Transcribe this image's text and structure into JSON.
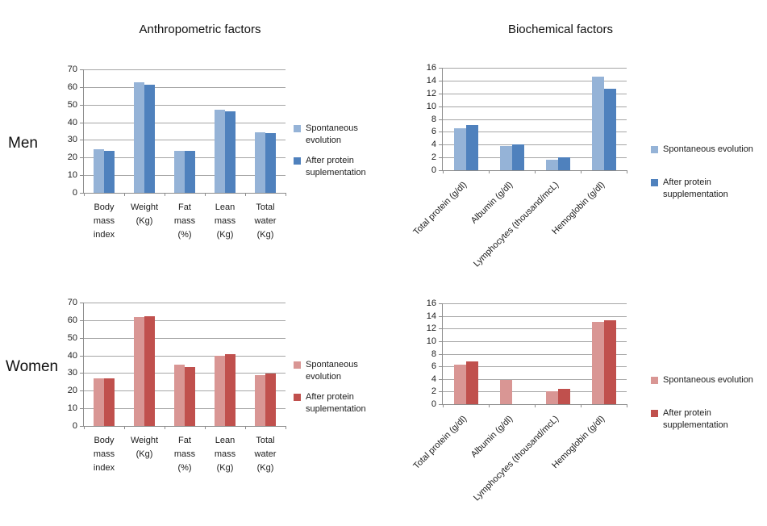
{
  "figure": {
    "column_titles": [
      "Anthropometric factors",
      "Biochemical factors"
    ],
    "row_labels": [
      "Men",
      "Women"
    ]
  },
  "colors": {
    "men_light_blue": "#95B3D7",
    "men_dark_blue": "#4F81BD",
    "women_light_pink": "#D99694",
    "women_dark_red": "#C0504D",
    "gridline": "#A6A6A6",
    "axis": "#8C8C8C",
    "text": "#1C1C1C",
    "background": "#FFFFFF"
  },
  "chart_data": [
    {
      "id": "men-anthropometric",
      "type": "bar",
      "row": "Men",
      "group_title": "Anthropometric factors",
      "categories": [
        "Body mass index",
        "Weight (Kg)",
        "Fat mass (%)",
        "Lean mass (Kg)",
        "Total water (Kg)"
      ],
      "series": [
        {
          "name": "Spontaneous evolution",
          "color": "#95B3D7",
          "values": [
            24.8,
            62.5,
            24,
            47,
            34.4
          ]
        },
        {
          "name": "After protein suplementation",
          "color": "#4F81BD",
          "values": [
            24,
            61.3,
            24,
            46.2,
            33.9
          ]
        }
      ],
      "xlabel": "",
      "ylabel": "",
      "ylim": [
        0,
        70
      ],
      "ytick_step": 10,
      "grid": true,
      "legend_position": "right",
      "x_label_style": "wrapped"
    },
    {
      "id": "men-biochemical",
      "type": "bar",
      "row": "Men",
      "group_title": "Biochemical factors",
      "categories": [
        "Total protein (g/dl)",
        "Albumin (g/dl)",
        "Lymphocytes (thousand/mcL)",
        "Hemoglobin (g/dl)"
      ],
      "series": [
        {
          "name": "Spontaneous evolution",
          "color": "#95B3D7",
          "values": [
            6.5,
            3.8,
            1.6,
            14.6
          ]
        },
        {
          "name": "After protein supplementation",
          "color": "#4F81BD",
          "values": [
            7,
            4,
            2,
            12.7
          ]
        }
      ],
      "xlabel": "",
      "ylabel": "",
      "ylim": [
        0,
        16
      ],
      "ytick_step": 2,
      "grid": true,
      "legend_position": "right",
      "x_label_style": "rotated"
    },
    {
      "id": "women-anthropometric",
      "type": "bar",
      "row": "Women",
      "group_title": "Anthropometric factors",
      "categories": [
        "Body mass index",
        "Weight (Kg)",
        "Fat mass (%)",
        "Lean mass (Kg)",
        "Total water (Kg)"
      ],
      "series": [
        {
          "name": "Spontaneous evolution",
          "color": "#D99694",
          "values": [
            27,
            62,
            34.8,
            40,
            28.8
          ]
        },
        {
          "name": "After protein suplementation",
          "color": "#C0504D",
          "values": [
            27.1,
            62.1,
            33.4,
            40.6,
            29.8
          ]
        }
      ],
      "xlabel": "",
      "ylabel": "",
      "ylim": [
        0,
        70
      ],
      "ytick_step": 10,
      "grid": true,
      "legend_position": "right",
      "x_label_style": "wrapped"
    },
    {
      "id": "women-biochemical",
      "type": "bar",
      "row": "Women",
      "group_title": "Biochemical factors",
      "categories": [
        "Total protein (g/dl)",
        "Albumin (g/dl)",
        "Lymphocytes (thousand/mcL)",
        "Hemoglobin (g/dl)"
      ],
      "series": [
        {
          "name": "Spontaneous evolution",
          "color": "#D99694",
          "values": [
            6.3,
            3.8,
            2,
            13
          ]
        },
        {
          "name": "After protein supplementation",
          "color": "#C0504D",
          "values": [
            6.8,
            0,
            2.4,
            13.3
          ]
        }
      ],
      "xlabel": "",
      "ylabel": "",
      "ylim": [
        0,
        16
      ],
      "ytick_step": 2,
      "grid": true,
      "legend_position": "right",
      "x_label_style": "rotated"
    }
  ]
}
